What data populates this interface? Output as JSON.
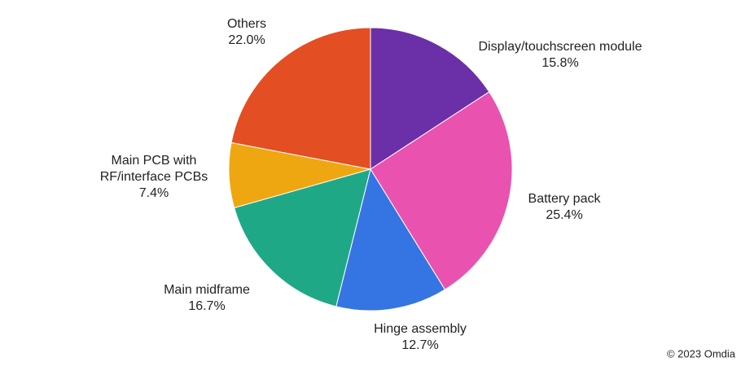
{
  "chart_data": {
    "type": "pie",
    "categories": [
      "Display/touchscreen module",
      "Battery pack",
      "Hinge assembly",
      "Main midframe",
      "Main PCB with\nRF/interface PCBs",
      "Others"
    ],
    "values": [
      15.8,
      25.4,
      12.7,
      16.7,
      7.4,
      22.0
    ],
    "value_labels": [
      "15.8%",
      "25.4%",
      "12.7%",
      "16.7%",
      "7.4%",
      "22.0%"
    ],
    "colors": [
      "#6b2fa8",
      "#ea52b0",
      "#3574e3",
      "#1fa886",
      "#eea711",
      "#e44e23"
    ],
    "credit": "© 2023 Omdia"
  }
}
